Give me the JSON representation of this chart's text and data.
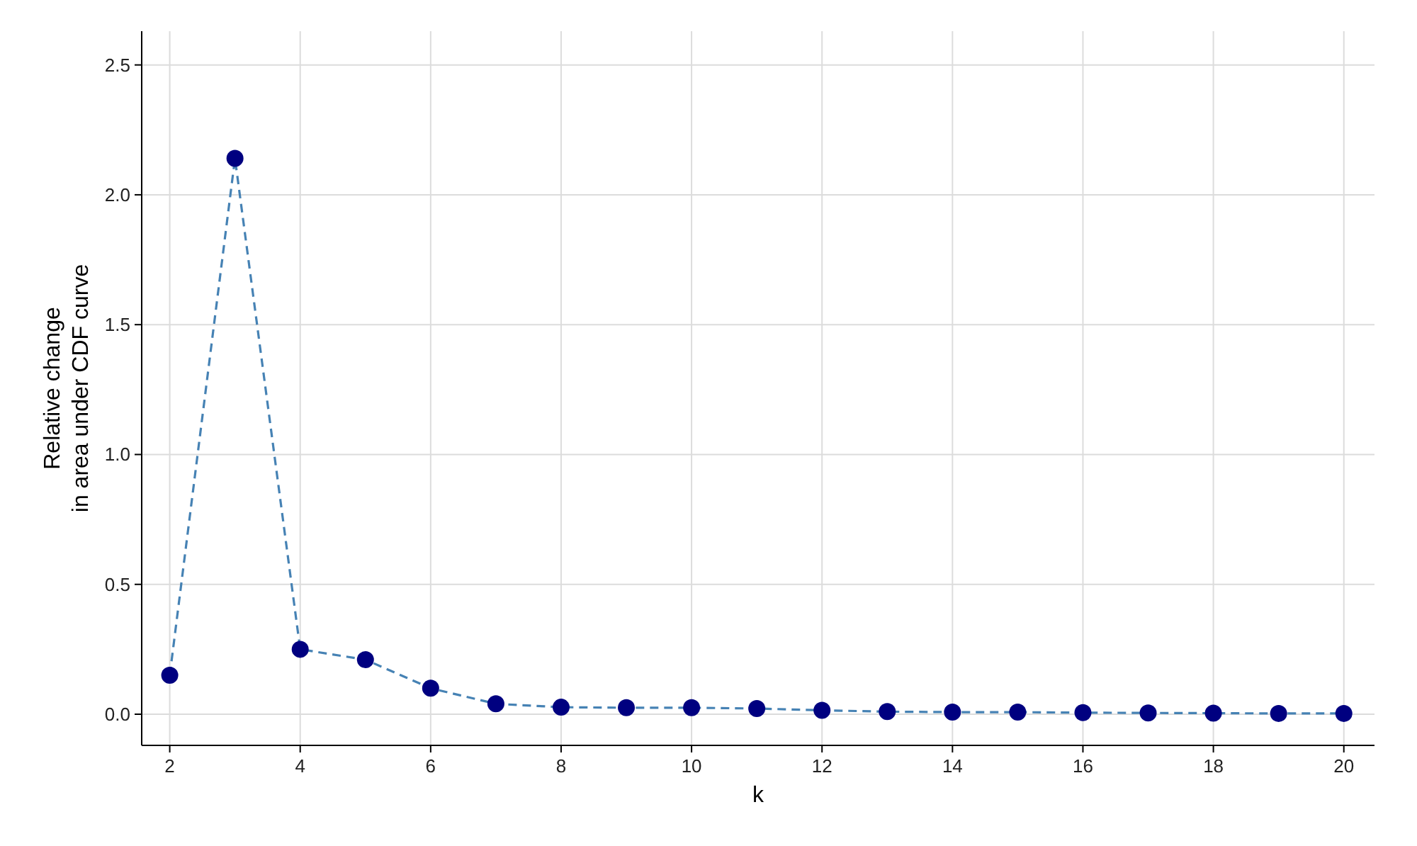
{
  "chart_data": {
    "type": "line",
    "xlabel": "k",
    "ylabel": "Relative change\nin area under CDF curve",
    "x": [
      2,
      3,
      4,
      5,
      6,
      7,
      8,
      9,
      10,
      11,
      12,
      13,
      14,
      15,
      16,
      17,
      18,
      19,
      20
    ],
    "series": [
      {
        "color": "#4682b4",
        "line_style": "dashed",
        "marker": "none",
        "values": [
          0.15,
          2.14,
          0.25,
          0.21,
          0.1,
          0.04,
          0.027,
          0.025,
          0.025,
          0.022,
          0.015,
          0.01,
          0.008,
          0.008,
          0.006,
          0.005,
          0.004,
          0.003,
          0.003
        ]
      },
      {
        "type": "scatter",
        "color": "#000080",
        "marker": "circle",
        "values": [
          0.15,
          2.14,
          0.25,
          0.21,
          0.1,
          0.04,
          0.027,
          0.025,
          0.025,
          0.022,
          0.015,
          0.01,
          0.008,
          0.008,
          0.006,
          0.005,
          0.004,
          0.003,
          0.003
        ]
      }
    ],
    "xlim": [
      1.57,
      20.47
    ],
    "ylim": [
      -0.12,
      2.63
    ],
    "xticks": [
      2,
      4,
      6,
      8,
      10,
      12,
      14,
      16,
      18,
      20
    ],
    "yticks": [
      {
        "value": 0,
        "label": "0.0"
      },
      {
        "value": 0.5,
        "label": "0.5"
      },
      {
        "value": 1,
        "label": "1.0"
      },
      {
        "value": 1.5,
        "label": "1.5"
      },
      {
        "value": 2,
        "label": "2.0"
      },
      {
        "value": 2.5,
        "label": "2.5"
      }
    ],
    "grid": true
  }
}
